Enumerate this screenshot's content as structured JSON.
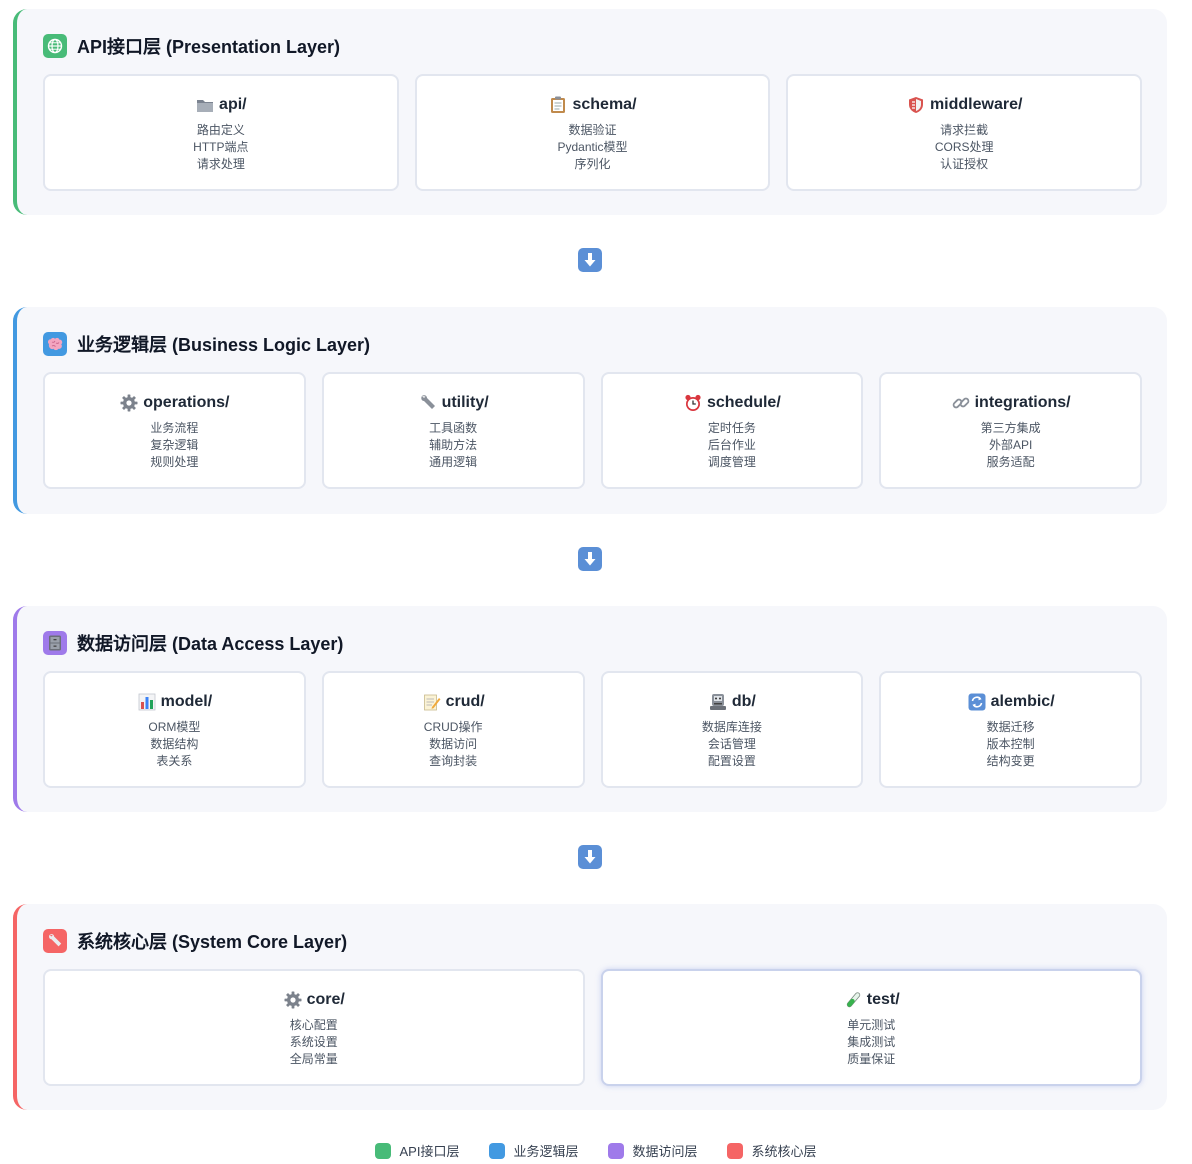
{
  "layers": [
    {
      "title": "API接口层 (Presentation Layer)",
      "color": "#48bb78",
      "icon": "globe-icon",
      "cards": [
        {
          "icon": "folder-icon",
          "title": "api/",
          "lines": [
            "路由定义",
            "HTTP端点",
            "请求处理"
          ]
        },
        {
          "icon": "clipboard-icon",
          "title": "schema/",
          "lines": [
            "数据验证",
            "Pydantic模型",
            "序列化"
          ]
        },
        {
          "icon": "shield-icon",
          "title": "middleware/",
          "lines": [
            "请求拦截",
            "CORS处理",
            "认证授权"
          ]
        }
      ]
    },
    {
      "title": "业务逻辑层 (Business Logic Layer)",
      "color": "#4299e1",
      "icon": "brain-icon",
      "cards": [
        {
          "icon": "gear-icon",
          "title": "operations/",
          "lines": [
            "业务流程",
            "复杂逻辑",
            "规则处理"
          ]
        },
        {
          "icon": "wrench-icon",
          "title": "utility/",
          "lines": [
            "工具函数",
            "辅助方法",
            "通用逻辑"
          ]
        },
        {
          "icon": "alarm-clock-icon",
          "title": "schedule/",
          "lines": [
            "定时任务",
            "后台作业",
            "调度管理"
          ]
        },
        {
          "icon": "link-icon",
          "title": "integrations/",
          "lines": [
            "第三方集成",
            "外部API",
            "服务适配"
          ]
        }
      ]
    },
    {
      "title": "数据访问层 (Data Access Layer)",
      "color": "#9f7aea",
      "icon": "file-cabinet-icon",
      "cards": [
        {
          "icon": "bar-chart-icon",
          "title": "model/",
          "lines": [
            "ORM模型",
            "数据结构",
            "表关系"
          ]
        },
        {
          "icon": "memo-icon",
          "title": "crud/",
          "lines": [
            "CRUD操作",
            "数据访问",
            "查询封装"
          ]
        },
        {
          "icon": "database-icon",
          "title": "db/",
          "lines": [
            "数据库连接",
            "会话管理",
            "配置设置"
          ]
        },
        {
          "icon": "refresh-icon",
          "title": "alembic/",
          "lines": [
            "数据迁移",
            "版本控制",
            "结构变更"
          ]
        }
      ]
    },
    {
      "title": "系统核心层 (System Core Layer)",
      "color": "#f56565",
      "icon": "wrench-icon",
      "cards": [
        {
          "icon": "gear-icon",
          "title": "core/",
          "lines": [
            "核心配置",
            "系统设置",
            "全局常量"
          ]
        },
        {
          "icon": "test-tube-icon",
          "title": "test/",
          "lines": [
            "单元测试",
            "集成测试",
            "质量保证"
          ]
        }
      ]
    }
  ],
  "arrow_icon": "arrow-down-icon",
  "legend": [
    {
      "label": "API接口层",
      "color": "#48bb78"
    },
    {
      "label": "业务逻辑层",
      "color": "#4299e1"
    },
    {
      "label": "数据访问层",
      "color": "#9f7aea"
    },
    {
      "label": "系统核心层",
      "color": "#f56565"
    }
  ]
}
